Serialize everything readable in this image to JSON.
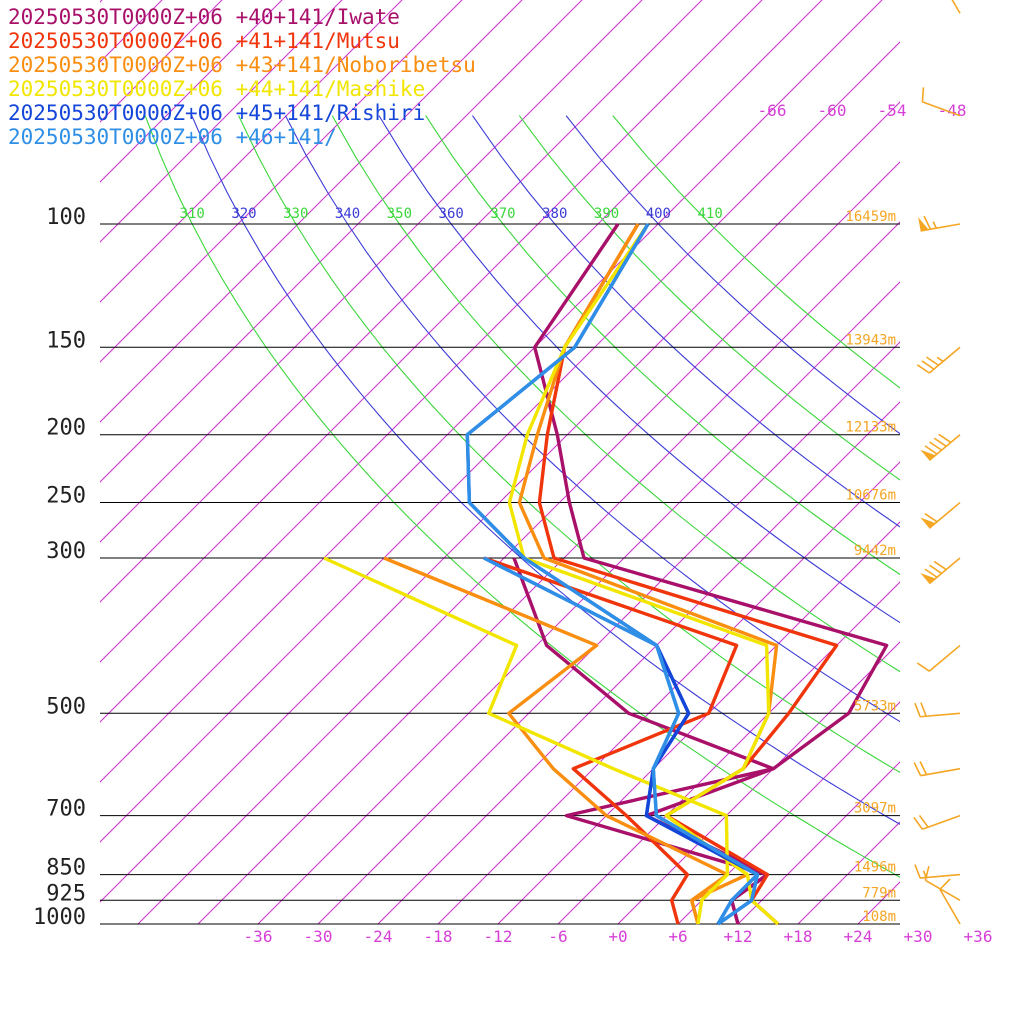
{
  "colors": {
    "background": "#ffffff",
    "isobar": "#000000",
    "isotherm": "#cc33cc",
    "theta_blue": "#3b3bd6",
    "theta_green": "#3ad63a",
    "height_label": "#f5a623",
    "wind_barb": "#f5a623"
  },
  "chart_data": {
    "type": "line",
    "title": "",
    "series": [
      {
        "name": "20250530T0000Z+06 +40+141/Iwate",
        "color": "#a8106a",
        "temperature": [
          [
            1000,
            12
          ],
          [
            925,
            9
          ],
          [
            850,
            10
          ],
          [
            700,
            -8
          ],
          [
            600,
            0
          ],
          [
            500,
            2
          ],
          [
            400,
            -1
          ],
          [
            300,
            -40
          ],
          [
            250,
            -47
          ],
          [
            200,
            -55
          ],
          [
            150,
            -66
          ],
          [
            100,
            -70
          ]
        ],
        "dewpoint": [
          [
            1000,
            12
          ],
          [
            925,
            9
          ],
          [
            850,
            10
          ],
          [
            700,
            -16
          ],
          [
            600,
            0
          ],
          [
            500,
            -20
          ],
          [
            400,
            -35
          ],
          [
            300,
            -47
          ]
        ]
      },
      {
        "name": "20250530T0000Z+06 +41+141/Mutsu",
        "color": "#f0350c",
        "temperature": [
          [
            1000,
            16
          ],
          [
            925,
            11
          ],
          [
            850,
            10
          ],
          [
            700,
            -6
          ],
          [
            600,
            -3
          ],
          [
            500,
            -4
          ],
          [
            400,
            -6
          ],
          [
            300,
            -43
          ],
          [
            250,
            -50
          ],
          [
            200,
            -56
          ],
          [
            150,
            -63
          ],
          [
            100,
            -68
          ]
        ],
        "dewpoint": [
          [
            1000,
            6
          ],
          [
            925,
            3
          ],
          [
            850,
            2
          ],
          [
            700,
            -10
          ],
          [
            600,
            -20
          ],
          [
            500,
            -12
          ],
          [
            400,
            -16
          ],
          [
            300,
            -50
          ]
        ]
      },
      {
        "name": "20250530T0000Z+06 +43+141/Noboribetsu",
        "color": "#f98e10",
        "temperature": [
          [
            1000,
            8
          ],
          [
            925,
            5
          ],
          [
            850,
            8
          ],
          [
            700,
            -6
          ],
          [
            600,
            -3
          ],
          [
            500,
            -6
          ],
          [
            400,
            -12
          ],
          [
            300,
            -44
          ],
          [
            250,
            -52
          ],
          [
            200,
            -57
          ],
          [
            150,
            -63
          ],
          [
            100,
            -68
          ]
        ],
        "dewpoint": [
          [
            1000,
            8
          ],
          [
            925,
            5
          ],
          [
            850,
            6
          ],
          [
            700,
            -12
          ],
          [
            600,
            -22
          ],
          [
            500,
            -32
          ],
          [
            400,
            -30
          ],
          [
            300,
            -60
          ]
        ]
      },
      {
        "name": "20250530T0000Z+06 +44+141/Mashike",
        "color": "#f2e600",
        "temperature": [
          [
            1000,
            16
          ],
          [
            925,
            11
          ],
          [
            850,
            8
          ],
          [
            700,
            -6
          ],
          [
            600,
            -3
          ],
          [
            500,
            -6
          ],
          [
            400,
            -13
          ],
          [
            300,
            -46
          ],
          [
            250,
            -53
          ],
          [
            200,
            -58
          ],
          [
            150,
            -63
          ],
          [
            100,
            -67
          ]
        ],
        "dewpoint": [
          [
            1000,
            8
          ],
          [
            925,
            6
          ],
          [
            850,
            6
          ],
          [
            700,
            0
          ],
          [
            600,
            -16
          ],
          [
            500,
            -34
          ],
          [
            400,
            -38
          ],
          [
            300,
            -66
          ]
        ]
      },
      {
        "name": "20250530T0000Z+06 +45+141/Rishiri",
        "color": "#1446d9",
        "temperature": [
          [
            1000,
            10
          ],
          [
            925,
            11
          ],
          [
            850,
            9
          ],
          [
            700,
            -8
          ],
          [
            600,
            -12
          ],
          [
            500,
            -14
          ],
          [
            400,
            -24
          ],
          [
            300,
            -46
          ],
          [
            250,
            -57
          ],
          [
            200,
            -64
          ],
          [
            150,
            -62
          ],
          [
            100,
            -67
          ]
        ],
        "dewpoint": [
          [
            1000,
            10
          ],
          [
            925,
            9
          ],
          [
            850,
            9
          ],
          [
            700,
            -8
          ],
          [
            600,
            -12
          ],
          [
            500,
            -14
          ],
          [
            400,
            -24
          ],
          [
            300,
            -50
          ]
        ]
      },
      {
        "name": "20250530T0000Z+06 +46+141/",
        "color": "#2f8fe6",
        "temperature": [
          [
            1000,
            10
          ],
          [
            925,
            11
          ],
          [
            850,
            9
          ],
          [
            700,
            -7
          ],
          [
            600,
            -12
          ],
          [
            500,
            -15
          ],
          [
            400,
            -24
          ],
          [
            300,
            -46
          ],
          [
            250,
            -57
          ],
          [
            200,
            -64
          ],
          [
            150,
            -62
          ],
          [
            100,
            -67
          ]
        ],
        "dewpoint": [
          [
            1000,
            10
          ],
          [
            925,
            9
          ],
          [
            850,
            9
          ],
          [
            700,
            -7
          ],
          [
            600,
            -12
          ],
          [
            500,
            -15
          ],
          [
            400,
            -24
          ],
          [
            300,
            -50
          ]
        ]
      }
    ],
    "pressure_levels": [
      {
        "p": 100,
        "label": "100",
        "height": "16459m"
      },
      {
        "p": 150,
        "label": "150",
        "height": "13943m"
      },
      {
        "p": 200,
        "label": "200",
        "height": "12133m"
      },
      {
        "p": 250,
        "label": "250",
        "height": "10676m"
      },
      {
        "p": 300,
        "label": "300",
        "height": "9442m"
      },
      {
        "p": 500,
        "label": "500",
        "height": "5733m"
      },
      {
        "p": 700,
        "label": "700",
        "height": "3097m"
      },
      {
        "p": 850,
        "label": "850",
        "height": "1496m"
      },
      {
        "p": 925,
        "label": "925",
        "height": "779m"
      },
      {
        "p": 1000,
        "label": "1000",
        "height": "108m"
      }
    ],
    "x_ticks": [
      "-36",
      "-30",
      "-24",
      "-18",
      "-12",
      "-6",
      "+0",
      "+6",
      "+12",
      "+18",
      "+24",
      "+30",
      "+36"
    ],
    "x_tick_values": [
      -36,
      -30,
      -24,
      -18,
      -12,
      -6,
      0,
      6,
      12,
      18,
      24,
      30,
      36
    ],
    "skewed_isotherm_labels": [
      "-66",
      "-60",
      "-54",
      "-48"
    ],
    "skewed_isotherm_values": [
      -66,
      -60,
      -54,
      -48
    ],
    "theta_labels": [
      "310",
      "320",
      "330",
      "340",
      "350",
      "360",
      "370",
      "380",
      "390",
      "400",
      "410"
    ],
    "theta_values": [
      310,
      320,
      330,
      340,
      350,
      360,
      370,
      380,
      390,
      400,
      410
    ],
    "xlim": [
      -42,
      38
    ],
    "ylim": [
      1000,
      100
    ],
    "y_scale": "log",
    "grid": true,
    "legend": "top-left",
    "wind_barbs": [
      {
        "p": 1000,
        "dir": 330,
        "speed": 10
      },
      {
        "p": 925,
        "dir": 300,
        "speed": 10
      },
      {
        "p": 850,
        "dir": 265,
        "speed": 15
      },
      {
        "p": 700,
        "dir": 250,
        "speed": 20
      },
      {
        "p": 600,
        "dir": 260,
        "speed": 20
      },
      {
        "p": 500,
        "dir": 265,
        "speed": 20
      },
      {
        "p": 400,
        "dir": 230,
        "speed": 10
      },
      {
        "p": 300,
        "dir": 230,
        "speed": 80
      },
      {
        "p": 250,
        "dir": 230,
        "speed": 60
      },
      {
        "p": 200,
        "dir": 230,
        "speed": 90
      },
      {
        "p": 150,
        "dir": 230,
        "speed": 35
      },
      {
        "p": 100,
        "dir": 260,
        "speed": 65
      },
      {
        "p": 70,
        "dir": 290,
        "speed": 10
      },
      {
        "p": 50,
        "dir": 330,
        "speed": 5
      }
    ]
  }
}
